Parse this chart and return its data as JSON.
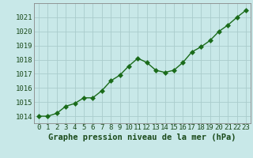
{
  "x": [
    0,
    1,
    2,
    3,
    4,
    5,
    6,
    7,
    8,
    9,
    10,
    11,
    12,
    13,
    14,
    15,
    16,
    17,
    18,
    19,
    20,
    21,
    22,
    23
  ],
  "y": [
    1014.0,
    1014.0,
    1014.2,
    1014.7,
    1014.9,
    1015.3,
    1015.3,
    1015.8,
    1016.5,
    1016.9,
    1017.55,
    1018.1,
    1017.8,
    1017.25,
    1017.1,
    1017.25,
    1017.8,
    1018.55,
    1018.9,
    1019.35,
    1020.0,
    1020.45,
    1021.0,
    1021.5
  ],
  "line_color": "#1a6b1a",
  "marker_color": "#1a6b1a",
  "bg_color": "#c8e8e8",
  "grid_color": "#aacccc",
  "tick_color": "#1a4a1a",
  "xlabel_label": "Graphe pression niveau de la mer (hPa)",
  "xlabel_color": "#1a4a1a",
  "ylim": [
    1013.5,
    1022.0
  ],
  "yticks": [
    1014,
    1015,
    1016,
    1017,
    1018,
    1019,
    1020,
    1021
  ],
  "xticks": [
    0,
    1,
    2,
    3,
    4,
    5,
    6,
    7,
    8,
    9,
    10,
    11,
    12,
    13,
    14,
    15,
    16,
    17,
    18,
    19,
    20,
    21,
    22,
    23
  ],
  "font_size_ticks": 6.5,
  "font_size_xlabel": 7.5,
  "line_width": 1.0,
  "marker_size": 3.0,
  "marker_style": "D"
}
